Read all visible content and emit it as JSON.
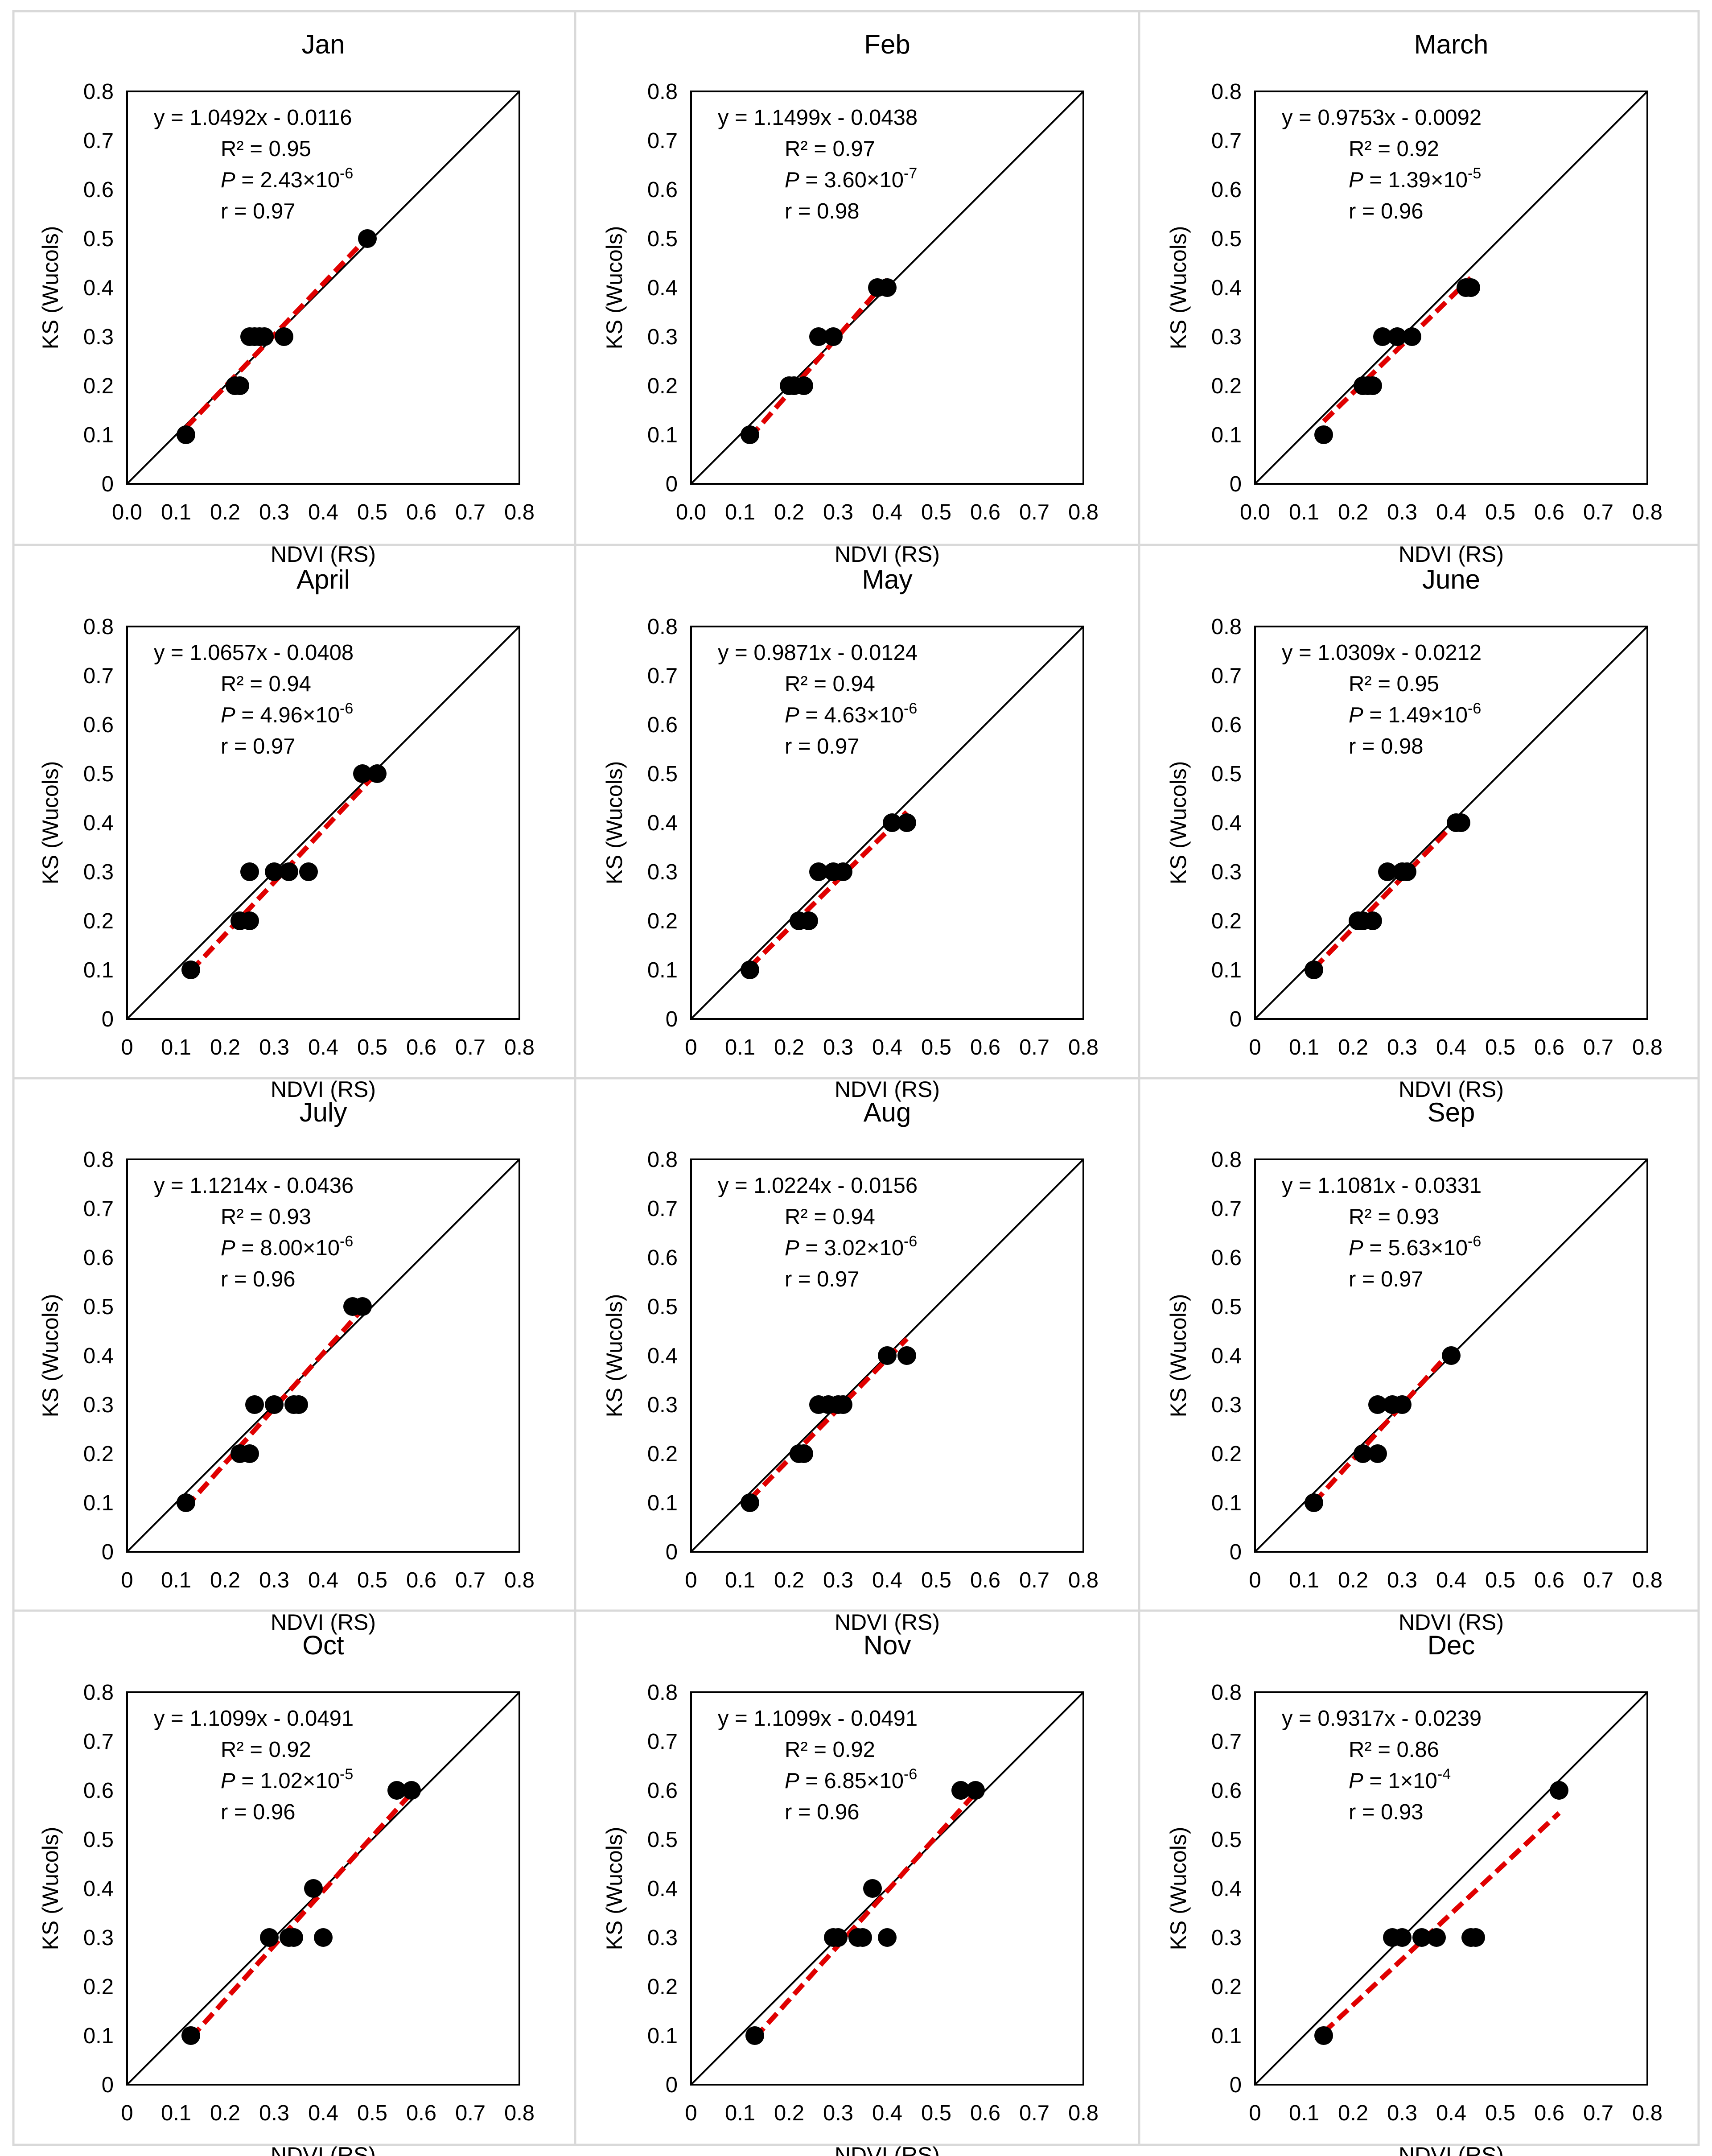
{
  "figure": {
    "xlabel": "NDVI (RS)",
    "ylabel": "KS (Wucols)",
    "colors": {
      "points": "#000000",
      "identity_line": "#000000",
      "trend_line": "#e00000",
      "border": "#d9d9d9"
    }
  },
  "chart_data": [
    {
      "type": "scatter",
      "title": "Jan",
      "x": [
        0.12,
        0.22,
        0.23,
        0.25,
        0.26,
        0.27,
        0.28,
        0.32,
        0.49
      ],
      "y": [
        0.1,
        0.2,
        0.2,
        0.3,
        0.3,
        0.3,
        0.3,
        0.3,
        0.5
      ],
      "xticks": [
        "0.0",
        "0.1",
        "0.2",
        "0.3",
        "0.4",
        "0.5",
        "0.6",
        "0.7",
        "0.8"
      ],
      "yticks": [
        "0",
        "0.1",
        "0.2",
        "0.3",
        "0.4",
        "0.5",
        "0.6",
        "0.7",
        "0.8"
      ],
      "xlim": [
        0,
        0.8
      ],
      "ylim": [
        0,
        0.8
      ],
      "trend": {
        "slope": 1.0492,
        "intercept": -0.0116,
        "x_range": [
          0.12,
          0.49
        ]
      },
      "stats": {
        "equation": "y = 1.0492x - 0.0116",
        "r2": "R² = 0.95",
        "p_prefix": "P",
        "p_mantissa": " = 2.43×10",
        "p_exponent": "-6",
        "r": "r = 0.97"
      }
    },
    {
      "type": "scatter",
      "title": "Feb",
      "x": [
        0.12,
        0.2,
        0.21,
        0.23,
        0.26,
        0.29,
        0.38,
        0.4
      ],
      "y": [
        0.1,
        0.2,
        0.2,
        0.2,
        0.3,
        0.3,
        0.4,
        0.4
      ],
      "xticks": [
        "0.0",
        "0.1",
        "0.2",
        "0.3",
        "0.4",
        "0.5",
        "0.6",
        "0.7",
        "0.8"
      ],
      "yticks": [
        "0",
        "0.1",
        "0.2",
        "0.3",
        "0.4",
        "0.5",
        "0.6",
        "0.7",
        "0.8"
      ],
      "xlim": [
        0,
        0.8
      ],
      "ylim": [
        0,
        0.8
      ],
      "trend": {
        "slope": 1.1499,
        "intercept": -0.0438,
        "x_range": [
          0.12,
          0.4
        ]
      },
      "stats": {
        "equation": "y = 1.1499x - 0.0438",
        "r2": "R² = 0.97",
        "p_prefix": "P",
        "p_mantissa": " = 3.60×10",
        "p_exponent": "-7",
        "r": "r = 0.98"
      }
    },
    {
      "type": "scatter",
      "title": "March",
      "x": [
        0.14,
        0.22,
        0.23,
        0.24,
        0.26,
        0.29,
        0.32,
        0.43,
        0.44
      ],
      "y": [
        0.1,
        0.2,
        0.2,
        0.2,
        0.3,
        0.3,
        0.3,
        0.4,
        0.4
      ],
      "xticks": [
        "0.0",
        "0.1",
        "0.2",
        "0.3",
        "0.4",
        "0.5",
        "0.6",
        "0.7",
        "0.8"
      ],
      "yticks": [
        "0",
        "0.1",
        "0.2",
        "0.3",
        "0.4",
        "0.5",
        "0.6",
        "0.7",
        "0.8"
      ],
      "xlim": [
        0,
        0.8
      ],
      "ylim": [
        0,
        0.8
      ],
      "trend": {
        "slope": 0.9753,
        "intercept": -0.0092,
        "x_range": [
          0.14,
          0.44
        ]
      },
      "stats": {
        "equation": "y = 0.9753x - 0.0092",
        "r2": "R² = 0.92",
        "p_prefix": "P",
        "p_mantissa": " = 1.39×10",
        "p_exponent": "-5",
        "r": "r = 0.96"
      }
    },
    {
      "type": "scatter",
      "title": "April",
      "x": [
        0.13,
        0.23,
        0.25,
        0.25,
        0.3,
        0.33,
        0.37,
        0.48,
        0.51
      ],
      "y": [
        0.1,
        0.2,
        0.2,
        0.3,
        0.3,
        0.3,
        0.3,
        0.5,
        0.5
      ],
      "xticks": [
        "0",
        "0.1",
        "0.2",
        "0.3",
        "0.4",
        "0.5",
        "0.6",
        "0.7",
        "0.8"
      ],
      "yticks": [
        "0",
        "0.1",
        "0.2",
        "0.3",
        "0.4",
        "0.5",
        "0.6",
        "0.7",
        "0.8"
      ],
      "xlim": [
        0,
        0.8
      ],
      "ylim": [
        0,
        0.8
      ],
      "trend": {
        "slope": 1.0657,
        "intercept": -0.0408,
        "x_range": [
          0.13,
          0.51
        ]
      },
      "stats": {
        "equation": "y = 1.0657x - 0.0408",
        "r2": "R² = 0.94",
        "p_prefix": "P",
        "p_mantissa": " = 4.96×10",
        "p_exponent": "-6",
        "r": "r = 0.97"
      }
    },
    {
      "type": "scatter",
      "title": "May",
      "x": [
        0.12,
        0.22,
        0.24,
        0.26,
        0.29,
        0.31,
        0.41,
        0.44
      ],
      "y": [
        0.1,
        0.2,
        0.2,
        0.3,
        0.3,
        0.3,
        0.4,
        0.4
      ],
      "xticks": [
        "0",
        "0.1",
        "0.2",
        "0.3",
        "0.4",
        "0.5",
        "0.6",
        "0.7",
        "0.8"
      ],
      "yticks": [
        "0",
        "0.1",
        "0.2",
        "0.3",
        "0.4",
        "0.5",
        "0.6",
        "0.7",
        "0.8"
      ],
      "xlim": [
        0,
        0.8
      ],
      "ylim": [
        0,
        0.8
      ],
      "trend": {
        "slope": 0.9871,
        "intercept": -0.0124,
        "x_range": [
          0.12,
          0.44
        ]
      },
      "stats": {
        "equation": "y = 0.9871x - 0.0124",
        "r2": "R² = 0.94",
        "p_prefix": "P",
        "p_mantissa": " = 4.63×10",
        "p_exponent": "-6",
        "r": "r = 0.97"
      }
    },
    {
      "type": "scatter",
      "title": "June",
      "x": [
        0.12,
        0.21,
        0.22,
        0.24,
        0.27,
        0.3,
        0.31,
        0.41,
        0.42
      ],
      "y": [
        0.1,
        0.2,
        0.2,
        0.2,
        0.3,
        0.3,
        0.3,
        0.4,
        0.4
      ],
      "xticks": [
        "0",
        "0.1",
        "0.2",
        "0.3",
        "0.4",
        "0.5",
        "0.6",
        "0.7",
        "0.8"
      ],
      "yticks": [
        "0",
        "0.1",
        "0.2",
        "0.3",
        "0.4",
        "0.5",
        "0.6",
        "0.7",
        "0.8"
      ],
      "xlim": [
        0,
        0.8
      ],
      "ylim": [
        0,
        0.8
      ],
      "trend": {
        "slope": 1.0309,
        "intercept": -0.0212,
        "x_range": [
          0.12,
          0.42
        ]
      },
      "stats": {
        "equation": "y = 1.0309x - 0.0212",
        "r2": "R² = 0.95",
        "p_prefix": "P",
        "p_mantissa": " = 1.49×10",
        "p_exponent": "-6",
        "r": "r = 0.98"
      }
    },
    {
      "type": "scatter",
      "title": "July",
      "x": [
        0.12,
        0.23,
        0.25,
        0.26,
        0.3,
        0.34,
        0.35,
        0.46,
        0.48
      ],
      "y": [
        0.1,
        0.2,
        0.2,
        0.3,
        0.3,
        0.3,
        0.3,
        0.5,
        0.5
      ],
      "xticks": [
        "0",
        "0.1",
        "0.2",
        "0.3",
        "0.4",
        "0.5",
        "0.6",
        "0.7",
        "0.8"
      ],
      "yticks": [
        "0",
        "0.1",
        "0.2",
        "0.3",
        "0.4",
        "0.5",
        "0.6",
        "0.7",
        "0.8"
      ],
      "xlim": [
        0,
        0.8
      ],
      "ylim": [
        0,
        0.8
      ],
      "trend": {
        "slope": 1.1214,
        "intercept": -0.0436,
        "x_range": [
          0.12,
          0.48
        ]
      },
      "stats": {
        "equation": "y = 1.1214x - 0.0436",
        "r2": "R² = 0.93",
        "p_prefix": "P",
        "p_mantissa": " = 8.00×10",
        "p_exponent": "-6",
        "r": "r = 0.96"
      }
    },
    {
      "type": "scatter",
      "title": "Aug",
      "x": [
        0.12,
        0.22,
        0.23,
        0.26,
        0.28,
        0.3,
        0.31,
        0.4,
        0.44
      ],
      "y": [
        0.1,
        0.2,
        0.2,
        0.3,
        0.3,
        0.3,
        0.3,
        0.4,
        0.4
      ],
      "xticks": [
        "0",
        "0.1",
        "0.2",
        "0.3",
        "0.4",
        "0.5",
        "0.6",
        "0.7",
        "0.8"
      ],
      "yticks": [
        "0",
        "0.1",
        "0.2",
        "0.3",
        "0.4",
        "0.5",
        "0.6",
        "0.7",
        "0.8"
      ],
      "xlim": [
        0,
        0.8
      ],
      "ylim": [
        0,
        0.8
      ],
      "trend": {
        "slope": 1.0224,
        "intercept": -0.0156,
        "x_range": [
          0.12,
          0.44
        ]
      },
      "stats": {
        "equation": "y = 1.0224x - 0.0156",
        "r2": "R² = 0.94",
        "p_prefix": "P",
        "p_mantissa": " = 3.02×10",
        "p_exponent": "-6",
        "r": "r = 0.97"
      }
    },
    {
      "type": "scatter",
      "title": "Sep",
      "x": [
        0.12,
        0.22,
        0.25,
        0.25,
        0.28,
        0.3,
        0.4
      ],
      "y": [
        0.1,
        0.2,
        0.2,
        0.3,
        0.3,
        0.3,
        0.4
      ],
      "xticks": [
        "0",
        "0.1",
        "0.2",
        "0.3",
        "0.4",
        "0.5",
        "0.6",
        "0.7",
        "0.8"
      ],
      "yticks": [
        "0",
        "0.1",
        "0.2",
        "0.3",
        "0.4",
        "0.5",
        "0.6",
        "0.7",
        "0.8"
      ],
      "xlim": [
        0,
        0.8
      ],
      "ylim": [
        0,
        0.8
      ],
      "trend": {
        "slope": 1.1081,
        "intercept": -0.0331,
        "x_range": [
          0.12,
          0.4
        ]
      },
      "stats": {
        "equation": "y = 1.1081x - 0.0331",
        "r2": "R² = 0.93",
        "p_prefix": "P",
        "p_mantissa": " = 5.63×10",
        "p_exponent": "-6",
        "r": "r = 0.97"
      }
    },
    {
      "type": "scatter",
      "title": "Oct",
      "x": [
        0.13,
        0.29,
        0.33,
        0.34,
        0.38,
        0.4,
        0.55,
        0.58
      ],
      "y": [
        0.1,
        0.3,
        0.3,
        0.3,
        0.4,
        0.3,
        0.6,
        0.6
      ],
      "xticks": [
        "0",
        "0.1",
        "0.2",
        "0.3",
        "0.4",
        "0.5",
        "0.6",
        "0.7",
        "0.8"
      ],
      "yticks": [
        "0",
        "0.1",
        "0.2",
        "0.3",
        "0.4",
        "0.5",
        "0.6",
        "0.7",
        "0.8"
      ],
      "xlim": [
        0,
        0.8
      ],
      "ylim": [
        0,
        0.8
      ],
      "trend": {
        "slope": 1.1099,
        "intercept": -0.0491,
        "x_range": [
          0.13,
          0.58
        ]
      },
      "stats": {
        "equation": "y = 1.1099x - 0.0491",
        "r2": "R² = 0.92",
        "p_prefix": "P",
        "p_mantissa": " = 1.02×10",
        "p_exponent": "-5",
        "r": "r = 0.96"
      }
    },
    {
      "type": "scatter",
      "title": "Nov",
      "x": [
        0.13,
        0.29,
        0.3,
        0.34,
        0.35,
        0.37,
        0.4,
        0.55,
        0.58
      ],
      "y": [
        0.1,
        0.3,
        0.3,
        0.3,
        0.3,
        0.4,
        0.3,
        0.6,
        0.6
      ],
      "xticks": [
        "0",
        "0.1",
        "0.2",
        "0.3",
        "0.4",
        "0.5",
        "0.6",
        "0.7",
        "0.8"
      ],
      "yticks": [
        "0",
        "0.1",
        "0.2",
        "0.3",
        "0.4",
        "0.5",
        "0.6",
        "0.7",
        "0.8"
      ],
      "xlim": [
        0,
        0.8
      ],
      "ylim": [
        0,
        0.8
      ],
      "trend": {
        "slope": 1.1099,
        "intercept": -0.0491,
        "x_range": [
          0.13,
          0.58
        ]
      },
      "stats": {
        "equation": "y = 1.1099x - 0.0491",
        "r2": "R² = 0.92",
        "p_prefix": "P",
        "p_mantissa": " = 6.85×10",
        "p_exponent": "-6",
        "r": "r = 0.96"
      }
    },
    {
      "type": "scatter",
      "title": "Dec",
      "x": [
        0.14,
        0.28,
        0.3,
        0.34,
        0.37,
        0.44,
        0.45,
        0.62
      ],
      "y": [
        0.1,
        0.3,
        0.3,
        0.3,
        0.3,
        0.3,
        0.3,
        0.6
      ],
      "xticks": [
        "0",
        "0.1",
        "0.2",
        "0.3",
        "0.4",
        "0.5",
        "0.6",
        "0.7",
        "0.8"
      ],
      "yticks": [
        "0",
        "0.1",
        "0.2",
        "0.3",
        "0.4",
        "0.5",
        "0.6",
        "0.7",
        "0.8"
      ],
      "xlim": [
        0,
        0.8
      ],
      "ylim": [
        0,
        0.8
      ],
      "trend": {
        "slope": 0.9317,
        "intercept": -0.0239,
        "x_range": [
          0.14,
          0.62
        ]
      },
      "stats": {
        "equation": "y = 0.9317x - 0.0239",
        "r2": "R² = 0.86",
        "p_prefix": "P",
        "p_mantissa": " = 1×10",
        "p_exponent": "-4",
        "r": "r = 0.93"
      }
    }
  ]
}
